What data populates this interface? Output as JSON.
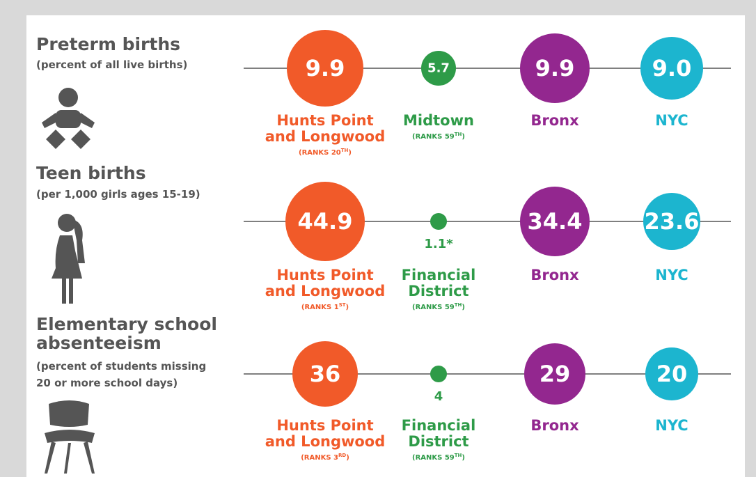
{
  "rows": [
    {
      "title_lines": [
        "Preterm births"
      ],
      "subtitle_lines": [
        "(percent of all live births)"
      ],
      "items": [
        {
          "value": "9.9",
          "name_lines": [
            "Hunts Point",
            "and Longwood"
          ],
          "rank": [
            "(RANKS 20",
            "TH",
            ")"
          ]
        },
        {
          "value": "5.7",
          "name_lines": [
            "Midtown"
          ],
          "rank": [
            "(RANKS 59",
            "TH",
            ")"
          ]
        },
        {
          "value": "9.9",
          "name_lines": [
            "Bronx"
          ]
        },
        {
          "value": "9.0",
          "name_lines": [
            "NYC"
          ]
        }
      ]
    },
    {
      "title_lines": [
        "Teen births"
      ],
      "subtitle_lines": [
        "(per 1,000 girls ages 15-19)"
      ],
      "items": [
        {
          "value": "44.9",
          "name_lines": [
            "Hunts Point",
            "and Longwood"
          ],
          "rank": [
            "(RANKS 1",
            "ST",
            ")"
          ]
        },
        {
          "value": "1.1*",
          "name_lines": [
            "Financial",
            "District"
          ],
          "rank": [
            "(RANKS 59",
            "TH",
            ")"
          ]
        },
        {
          "value": "34.4",
          "name_lines": [
            "Bronx"
          ]
        },
        {
          "value": "23.6",
          "name_lines": [
            "NYC"
          ]
        }
      ]
    },
    {
      "title_lines": [
        "Elementary school",
        "absenteeism"
      ],
      "subtitle_lines": [
        "(percent of students missing",
        "20 or more school days)"
      ],
      "items": [
        {
          "value": "36",
          "name_lines": [
            "Hunts Point",
            "and Longwood"
          ],
          "rank": [
            "(RANKS 3",
            "RD",
            ")"
          ]
        },
        {
          "value": "4",
          "name_lines": [
            "Financial",
            "District"
          ],
          "rank": [
            "(RANKS 59",
            "TH",
            ")"
          ]
        },
        {
          "value": "29",
          "name_lines": [
            "Bronx"
          ]
        },
        {
          "value": "20",
          "name_lines": [
            "NYC"
          ]
        }
      ]
    }
  ]
}
